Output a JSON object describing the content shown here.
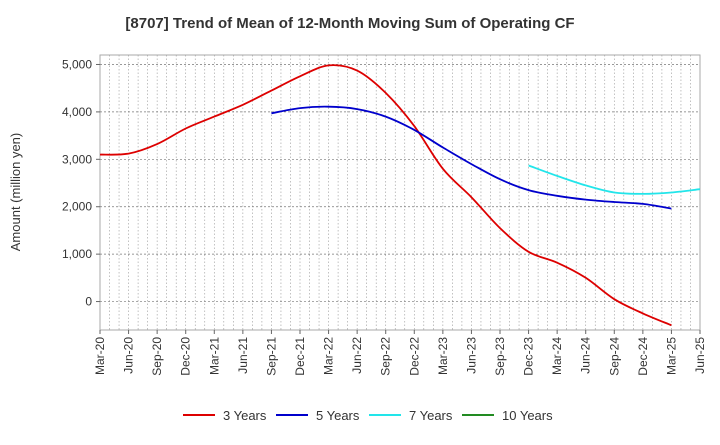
{
  "chart_data": {
    "type": "line",
    "title": "[8707]  Trend of Mean of 12-Month Moving Sum of Operating CF",
    "xlabel": "",
    "ylabel": "Amount (million yen)",
    "ylim": [
      -600,
      5200
    ],
    "yticks": [
      0,
      1000,
      2000,
      3000,
      4000,
      5000
    ],
    "ytick_labels": [
      "0",
      "1,000",
      "2,000",
      "3,000",
      "4,000",
      "5,000"
    ],
    "grid": true,
    "legend_position": "bottom",
    "x_categories": [
      "Mar-20",
      "Jun-20",
      "Sep-20",
      "Dec-20",
      "Mar-21",
      "Jun-21",
      "Sep-21",
      "Dec-21",
      "Mar-22",
      "Jun-22",
      "Sep-22",
      "Dec-22",
      "Mar-23",
      "Jun-23",
      "Sep-23",
      "Dec-23",
      "Mar-24",
      "Jun-24",
      "Sep-24",
      "Dec-24",
      "Mar-25",
      "Jun-25"
    ],
    "series": [
      {
        "name": "3 Years",
        "color": "#dd0000",
        "start_index": 0,
        "values": [
          3100,
          3120,
          3320,
          3650,
          3900,
          4150,
          4450,
          4750,
          4980,
          4870,
          4400,
          3700,
          2800,
          2200,
          1550,
          1050,
          820,
          500,
          50,
          -250,
          -500
        ]
      },
      {
        "name": "5 Years",
        "color": "#0000cc",
        "start_index": 6,
        "values": [
          3970,
          4080,
          4110,
          4060,
          3900,
          3620,
          3250,
          2900,
          2580,
          2350,
          2230,
          2150,
          2100,
          2060,
          1960
        ]
      },
      {
        "name": "7 Years",
        "color": "#22e5ea",
        "start_index": 15,
        "values": [
          2870,
          2650,
          2450,
          2300,
          2270,
          2300,
          2370
        ]
      },
      {
        "name": "10 Years",
        "color": "#228b22",
        "start_index": 0,
        "values": []
      }
    ]
  }
}
